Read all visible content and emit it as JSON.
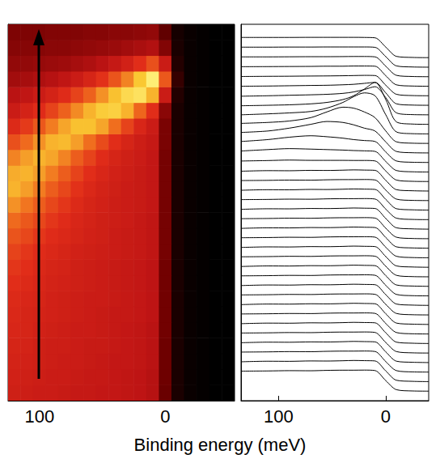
{
  "xlabel": "Binding energy (meV)",
  "chart_data": [
    {
      "type": "heatmap",
      "x": [
        120,
        110,
        100,
        90,
        80,
        70,
        60,
        50,
        40,
        30,
        20,
        10,
        0,
        -10,
        -20,
        -30,
        -40,
        -50
      ],
      "y": [
        0.5,
        1.5,
        2.5,
        3.5,
        4.5,
        5.5,
        6.5,
        7.5,
        8.5,
        9.5,
        10.5,
        11.5,
        12.5,
        13.5,
        14.5,
        15.5,
        16.5,
        17.5,
        18.5,
        19.5,
        20.5,
        21.5,
        22.5,
        23.5
      ],
      "values": [
        [
          0.52,
          0.51,
          0.5,
          0.5,
          0.49,
          0.48,
          0.48,
          0.47,
          0.47,
          0.46,
          0.45,
          0.43,
          0.24,
          0.06,
          0.02,
          0.01,
          0,
          0
        ],
        [
          0.53,
          0.52,
          0.51,
          0.5,
          0.5,
          0.49,
          0.48,
          0.48,
          0.47,
          0.46,
          0.45,
          0.43,
          0.25,
          0.06,
          0.02,
          0.01,
          0,
          0
        ],
        [
          0.54,
          0.53,
          0.52,
          0.51,
          0.5,
          0.5,
          0.49,
          0.48,
          0.47,
          0.47,
          0.46,
          0.44,
          0.25,
          0.06,
          0.02,
          0.01,
          0,
          0
        ],
        [
          0.55,
          0.54,
          0.52,
          0.51,
          0.51,
          0.5,
          0.49,
          0.49,
          0.48,
          0.47,
          0.46,
          0.44,
          0.25,
          0.06,
          0.02,
          0.01,
          0,
          0
        ],
        [
          0.56,
          0.55,
          0.53,
          0.52,
          0.51,
          0.5,
          0.5,
          0.49,
          0.48,
          0.47,
          0.46,
          0.44,
          0.26,
          0.06,
          0.02,
          0.01,
          0,
          0
        ],
        [
          0.57,
          0.55,
          0.54,
          0.53,
          0.52,
          0.51,
          0.5,
          0.49,
          0.48,
          0.48,
          0.47,
          0.45,
          0.26,
          0.06,
          0.02,
          0.01,
          0,
          0
        ],
        [
          0.58,
          0.56,
          0.55,
          0.53,
          0.52,
          0.51,
          0.5,
          0.5,
          0.49,
          0.48,
          0.47,
          0.45,
          0.26,
          0.06,
          0.02,
          0.01,
          0,
          0
        ],
        [
          0.6,
          0.58,
          0.56,
          0.54,
          0.53,
          0.52,
          0.51,
          0.5,
          0.49,
          0.48,
          0.47,
          0.45,
          0.26,
          0.06,
          0.02,
          0.01,
          0,
          0
        ],
        [
          0.62,
          0.6,
          0.57,
          0.55,
          0.54,
          0.52,
          0.51,
          0.5,
          0.49,
          0.48,
          0.47,
          0.45,
          0.26,
          0.06,
          0.02,
          0.01,
          0,
          0
        ],
        [
          0.65,
          0.62,
          0.59,
          0.57,
          0.55,
          0.53,
          0.52,
          0.51,
          0.5,
          0.49,
          0.48,
          0.46,
          0.27,
          0.06,
          0.02,
          0.01,
          0,
          0
        ],
        [
          0.69,
          0.66,
          0.62,
          0.59,
          0.57,
          0.55,
          0.53,
          0.52,
          0.5,
          0.49,
          0.48,
          0.46,
          0.27,
          0.06,
          0.02,
          0.01,
          0,
          0
        ],
        [
          0.74,
          0.7,
          0.66,
          0.62,
          0.59,
          0.56,
          0.54,
          0.52,
          0.51,
          0.5,
          0.48,
          0.46,
          0.27,
          0.06,
          0.02,
          0.01,
          0,
          0
        ],
        [
          0.8,
          0.76,
          0.71,
          0.66,
          0.62,
          0.58,
          0.55,
          0.53,
          0.51,
          0.5,
          0.49,
          0.47,
          0.27,
          0.06,
          0.02,
          0.01,
          0,
          0
        ],
        [
          0.85,
          0.82,
          0.77,
          0.71,
          0.66,
          0.61,
          0.57,
          0.54,
          0.52,
          0.5,
          0.49,
          0.47,
          0.27,
          0.06,
          0.02,
          0.01,
          0,
          0
        ],
        [
          0.84,
          0.85,
          0.82,
          0.77,
          0.71,
          0.65,
          0.6,
          0.56,
          0.53,
          0.51,
          0.49,
          0.47,
          0.27,
          0.06,
          0.02,
          0.01,
          0,
          0
        ],
        [
          0.78,
          0.82,
          0.85,
          0.83,
          0.78,
          0.71,
          0.65,
          0.59,
          0.55,
          0.52,
          0.5,
          0.47,
          0.27,
          0.06,
          0.02,
          0.01,
          0,
          0
        ],
        [
          0.68,
          0.74,
          0.8,
          0.85,
          0.86,
          0.82,
          0.75,
          0.67,
          0.6,
          0.55,
          0.51,
          0.48,
          0.28,
          0.06,
          0.02,
          0.01,
          0,
          0
        ],
        [
          0.58,
          0.63,
          0.7,
          0.77,
          0.83,
          0.87,
          0.87,
          0.83,
          0.75,
          0.65,
          0.56,
          0.5,
          0.28,
          0.06,
          0.02,
          0.01,
          0,
          0
        ],
        [
          0.5,
          0.54,
          0.59,
          0.65,
          0.72,
          0.79,
          0.85,
          0.89,
          0.9,
          0.85,
          0.73,
          0.6,
          0.32,
          0.06,
          0.02,
          0.01,
          0,
          0
        ],
        [
          0.44,
          0.46,
          0.5,
          0.54,
          0.59,
          0.65,
          0.72,
          0.8,
          0.87,
          0.92,
          0.94,
          0.85,
          0.5,
          0.08,
          0.02,
          0.01,
          0,
          0
        ],
        [
          0.38,
          0.39,
          0.41,
          0.43,
          0.46,
          0.5,
          0.55,
          0.61,
          0.69,
          0.78,
          0.88,
          0.97,
          0.7,
          0.12,
          0.02,
          0.01,
          0,
          0
        ],
        [
          0.34,
          0.34,
          0.35,
          0.36,
          0.37,
          0.39,
          0.41,
          0.44,
          0.48,
          0.53,
          0.6,
          0.68,
          0.5,
          0.08,
          0.02,
          0.01,
          0,
          0
        ],
        [
          0.31,
          0.31,
          0.31,
          0.32,
          0.32,
          0.33,
          0.34,
          0.35,
          0.36,
          0.38,
          0.4,
          0.42,
          0.3,
          0.06,
          0.02,
          0.01,
          0,
          0
        ],
        [
          0.29,
          0.29,
          0.29,
          0.3,
          0.3,
          0.3,
          0.31,
          0.31,
          0.32,
          0.32,
          0.33,
          0.34,
          0.22,
          0.05,
          0.02,
          0.01,
          0,
          0
        ]
      ],
      "value_range": [
        0,
        1
      ],
      "xlim": [
        125,
        -55
      ],
      "xticks": [
        100,
        0
      ],
      "ylim": [
        0,
        24
      ],
      "tick_labels": "x"
    },
    {
      "type": "line",
      "x": [
        135,
        110,
        90,
        70,
        55,
        40,
        30,
        20,
        10,
        0,
        -10,
        -25,
        -40
      ],
      "color": "#000000",
      "series": [
        {
          "values": [
            2.1,
            2.12,
            2.15,
            2.14,
            2.18,
            2.2,
            2.2,
            2.21,
            2.16,
            1.1,
            0.15,
            0.02,
            0
          ]
        },
        {
          "values": [
            3.08,
            3.14,
            3.13,
            3.17,
            3.16,
            3.19,
            3.22,
            3.2,
            3.17,
            2.12,
            1.14,
            1.03,
            1
          ]
        },
        {
          "values": [
            4.1,
            4.12,
            4.15,
            4.14,
            4.18,
            4.2,
            4.2,
            4.21,
            4.16,
            3.1,
            2.15,
            2.02,
            2
          ]
        },
        {
          "values": [
            5.08,
            5.14,
            5.13,
            5.17,
            5.16,
            5.19,
            5.22,
            5.2,
            5.17,
            4.12,
            3.14,
            3.03,
            3
          ]
        },
        {
          "values": [
            6.1,
            6.12,
            6.15,
            6.14,
            6.18,
            6.2,
            6.2,
            6.21,
            6.16,
            5.1,
            4.15,
            4.02,
            4
          ]
        },
        {
          "values": [
            7.08,
            7.14,
            7.13,
            7.17,
            7.16,
            7.19,
            7.22,
            7.2,
            7.17,
            6.12,
            5.14,
            5.03,
            5
          ]
        },
        {
          "values": [
            8.1,
            8.12,
            8.15,
            8.14,
            8.18,
            8.2,
            8.2,
            8.21,
            8.16,
            7.1,
            6.15,
            6.02,
            6
          ]
        },
        {
          "values": [
            9.08,
            9.14,
            9.13,
            9.17,
            9.16,
            9.19,
            9.22,
            9.2,
            9.17,
            8.12,
            7.14,
            7.03,
            7
          ]
        },
        {
          "values": [
            10.1,
            10.12,
            10.15,
            10.14,
            10.18,
            10.2,
            10.2,
            10.21,
            10.16,
            9.1,
            8.15,
            8.02,
            8
          ]
        },
        {
          "values": [
            11.08,
            11.14,
            11.13,
            11.17,
            11.16,
            11.19,
            11.22,
            11.2,
            11.17,
            10.12,
            9.14,
            9.03,
            9
          ]
        },
        {
          "values": [
            12.1,
            12.12,
            12.15,
            12.14,
            12.18,
            12.2,
            12.2,
            12.21,
            12.16,
            11.1,
            10.15,
            10.02,
            10
          ]
        },
        {
          "values": [
            13.08,
            13.14,
            13.13,
            13.17,
            13.16,
            13.19,
            13.22,
            13.2,
            13.17,
            12.12,
            11.14,
            11.03,
            11
          ]
        },
        {
          "values": [
            14.1,
            14.12,
            14.15,
            14.14,
            14.18,
            14.2,
            14.2,
            14.21,
            14.16,
            13.1,
            12.15,
            12.02,
            12
          ]
        },
        {
          "values": [
            15.08,
            15.14,
            15.13,
            15.17,
            15.16,
            15.19,
            15.22,
            15.2,
            15.17,
            14.12,
            13.14,
            13.03,
            13
          ]
        },
        {
          "values": [
            16.1,
            16.12,
            16.15,
            16.14,
            16.18,
            16.2,
            16.2,
            16.21,
            16.16,
            15.1,
            14.15,
            14.02,
            14
          ]
        },
        {
          "values": [
            17.08,
            17.14,
            17.13,
            17.17,
            17.16,
            17.19,
            17.22,
            17.2,
            17.17,
            16.12,
            15.14,
            15.03,
            15
          ]
        },
        {
          "values": [
            18.1,
            18.12,
            18.15,
            18.14,
            18.18,
            18.2,
            18.2,
            18.21,
            18.16,
            17.1,
            16.15,
            16.02,
            16
          ]
        },
        {
          "values": [
            19.08,
            19.14,
            19.13,
            19.17,
            19.16,
            19.19,
            19.22,
            19.2,
            19.17,
            18.12,
            17.14,
            17.03,
            17
          ]
        },
        {
          "values": [
            20.1,
            20.12,
            20.15,
            20.14,
            20.18,
            20.2,
            20.2,
            20.21,
            20.16,
            19.1,
            18.15,
            18.02,
            18
          ]
        },
        {
          "values": [
            21.08,
            21.14,
            21.13,
            21.17,
            21.16,
            21.19,
            21.22,
            21.2,
            21.17,
            20.12,
            19.14,
            19.03,
            19
          ]
        },
        {
          "values": [
            22.1,
            22.12,
            22.15,
            22.14,
            22.18,
            22.2,
            22.2,
            22.21,
            22.16,
            21.1,
            20.15,
            20.02,
            20
          ]
        },
        {
          "values": [
            23.08,
            23.14,
            23.13,
            23.17,
            23.16,
            23.19,
            23.22,
            23.2,
            23.17,
            22.12,
            21.14,
            21.03,
            21
          ]
        },
        {
          "values": [
            24.15,
            24.2,
            24.25,
            24.22,
            24.22,
            24.22,
            24.21,
            24.21,
            24.16,
            23.1,
            22.15,
            22.02,
            22
          ]
        },
        {
          "values": [
            25.2,
            25.35,
            25.45,
            25.4,
            25.35,
            25.3,
            25.25,
            25.22,
            25.16,
            24.1,
            23.15,
            23.02,
            23
          ]
        },
        {
          "values": [
            26.2,
            26.4,
            26.65,
            26.8,
            26.7,
            26.55,
            26.4,
            26.3,
            26.2,
            25.1,
            24.15,
            24.02,
            24
          ]
        },
        {
          "values": [
            27.15,
            27.3,
            27.6,
            28,
            28.3,
            28.2,
            27.95,
            27.6,
            27.3,
            26.15,
            25.15,
            25.02,
            25
          ]
        },
        {
          "values": [
            28.1,
            28.2,
            28.35,
            28.7,
            29.3,
            29.8,
            29.7,
            29.3,
            28.7,
            27.3,
            26.16,
            26.02,
            26
          ]
        },
        {
          "values": [
            29,
            29.1,
            29.2,
            29.35,
            29.7,
            30.3,
            30.9,
            31.3,
            31,
            29,
            27.2,
            27.02,
            27
          ]
        },
        {
          "values": [
            29.95,
            30,
            30.05,
            30.15,
            30.3,
            30.6,
            31,
            31.7,
            32.4,
            30.6,
            28.25,
            28.03,
            28
          ]
        },
        {
          "values": [
            30.95,
            31,
            31.05,
            31.1,
            31.15,
            31.25,
            31.4,
            31.65,
            31.95,
            30.8,
            29.2,
            29.02,
            29
          ]
        },
        {
          "values": [
            32,
            32.02,
            32.05,
            32.08,
            32.1,
            32.15,
            32.2,
            32.3,
            32.4,
            31.3,
            30.15,
            30.02,
            30
          ]
        },
        {
          "values": [
            33.02,
            33.04,
            33.05,
            33.07,
            33.08,
            33.1,
            33.12,
            33.14,
            33.12,
            32.1,
            31.15,
            31.02,
            31
          ]
        },
        {
          "values": [
            34.05,
            34.06,
            34.07,
            34.08,
            34.1,
            34.1,
            34.12,
            34.12,
            34.1,
            33.1,
            32.14,
            32.02,
            32
          ]
        },
        {
          "values": [
            35.08,
            35.08,
            35.09,
            35.1,
            35.1,
            35.11,
            35.12,
            35.12,
            35.08,
            34.1,
            33.14,
            33.02,
            33
          ]
        },
        {
          "values": [
            36.1,
            36.1,
            36.11,
            36.11,
            36.12,
            36.12,
            36.12,
            36.12,
            36.08,
            35.1,
            34.13,
            34.02,
            34
          ]
        },
        {
          "values": [
            37.12,
            37.12,
            37.12,
            37.13,
            37.13,
            37.13,
            37.13,
            37.12,
            37.08,
            36.1,
            35.13,
            35.02,
            35
          ]
        }
      ],
      "xlim": [
        135,
        -40
      ],
      "xticks": [
        100,
        0
      ],
      "ylim": [
        -1,
        38.5
      ],
      "tick_labels": "x"
    }
  ]
}
